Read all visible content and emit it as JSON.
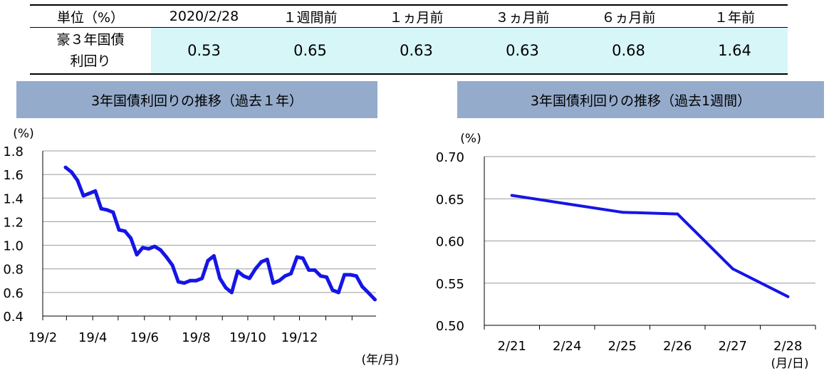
{
  "summary_table": {
    "headers": [
      "単位（%）",
      "2020/2/28",
      "１週間前",
      "１ヵ月前",
      "３ヵ月前",
      "６ヵ月前",
      "１年前"
    ],
    "row_label_line1": "豪３年国債",
    "row_label_line2": "利回り",
    "values": [
      "0.53",
      "0.65",
      "0.63",
      "0.63",
      "0.68",
      "1.64"
    ]
  },
  "colors": {
    "line": "#1515e6",
    "header_bg": "#95abcb",
    "highlight_bg": "#d7f6f8",
    "grid": "#9a9a9a"
  },
  "chart_data": [
    {
      "type": "line",
      "title": "3年国債利回りの推移（過去１年）",
      "yunit": "(%)",
      "xunit": "(年/月)",
      "ylim": [
        0.4,
        1.8
      ],
      "yticks": [
        "0.4",
        "0.6",
        "0.8",
        "1.0",
        "1.2",
        "1.4",
        "1.6",
        "1.8"
      ],
      "xticks": [
        "19/2",
        "19/4",
        "19/6",
        "19/8",
        "19/10",
        "19/12"
      ],
      "grid": true,
      "x": [
        "2019-02-28",
        "2019-03-07",
        "2019-03-14",
        "2019-03-21",
        "2019-03-28",
        "2019-04-04",
        "2019-04-11",
        "2019-04-18",
        "2019-04-25",
        "2019-05-02",
        "2019-05-09",
        "2019-05-16",
        "2019-05-23",
        "2019-05-30",
        "2019-06-06",
        "2019-06-13",
        "2019-06-20",
        "2019-06-27",
        "2019-07-04",
        "2019-07-11",
        "2019-07-18",
        "2019-07-25",
        "2019-08-01",
        "2019-08-08",
        "2019-08-15",
        "2019-08-22",
        "2019-08-29",
        "2019-09-05",
        "2019-09-12",
        "2019-09-19",
        "2019-09-26",
        "2019-10-03",
        "2019-10-10",
        "2019-10-17",
        "2019-10-24",
        "2019-10-31",
        "2019-11-07",
        "2019-11-14",
        "2019-11-21",
        "2019-11-28",
        "2019-12-05",
        "2019-12-12",
        "2019-12-19",
        "2019-12-26",
        "2020-01-02",
        "2020-01-09",
        "2020-01-16",
        "2020-01-23",
        "2020-01-30",
        "2020-02-06",
        "2020-02-13",
        "2020-02-20",
        "2020-02-28"
      ],
      "series": [
        {
          "values": [
            1.66,
            1.62,
            1.55,
            1.42,
            1.44,
            1.46,
            1.31,
            1.3,
            1.28,
            1.13,
            1.12,
            1.06,
            0.92,
            0.98,
            0.97,
            0.99,
            0.96,
            0.9,
            0.83,
            0.69,
            0.68,
            0.7,
            0.7,
            0.72,
            0.87,
            0.91,
            0.72,
            0.64,
            0.6,
            0.78,
            0.74,
            0.72,
            0.8,
            0.86,
            0.88,
            0.68,
            0.7,
            0.74,
            0.76,
            0.9,
            0.89,
            0.79,
            0.79,
            0.74,
            0.73,
            0.62,
            0.6,
            0.75,
            0.75,
            0.74,
            0.65,
            0.6,
            0.54
          ]
        }
      ]
    },
    {
      "type": "line",
      "title": "3年国債利回りの推移（過去1週間）",
      "yunit": "(%)",
      "xunit": "(月/日)",
      "ylim": [
        0.5,
        0.7
      ],
      "yticks": [
        "0.50",
        "0.55",
        "0.60",
        "0.65",
        "0.70"
      ],
      "categories": [
        "2/21",
        "2/24",
        "2/25",
        "2/26",
        "2/27",
        "2/28"
      ],
      "grid": true,
      "series": [
        {
          "values": [
            0.654,
            0.644,
            0.634,
            0.632,
            0.567,
            0.534
          ]
        }
      ]
    }
  ]
}
